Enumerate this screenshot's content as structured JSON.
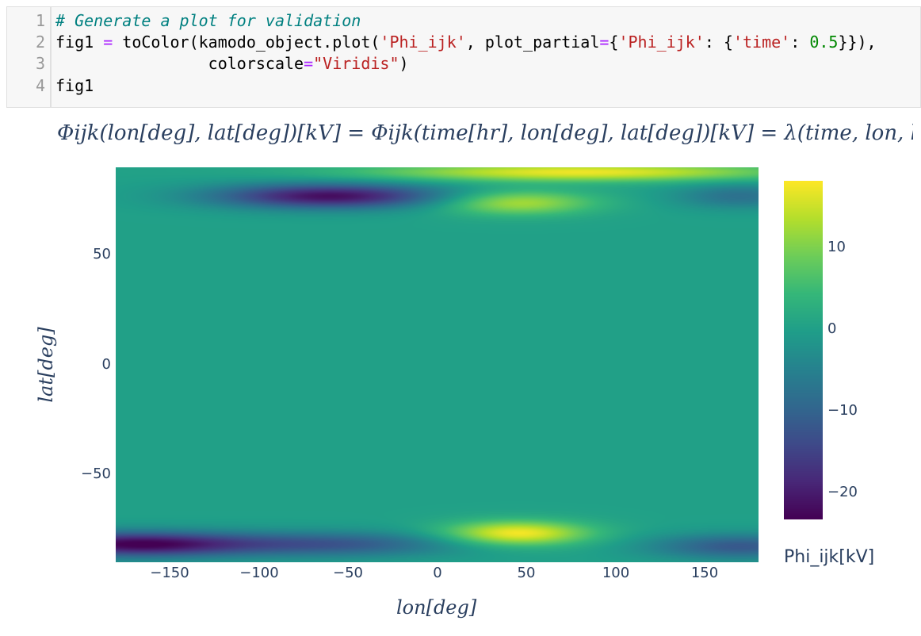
{
  "code_cell": {
    "line_numbers": [
      "1",
      "2",
      "3",
      "4"
    ],
    "lines": {
      "l1_comment": "# Generate a plot for validation",
      "l2_a": "fig1 ",
      "l2_eq": "=",
      "l2_b": " toColor(kamodo_object.plot(",
      "l2_s1": "'Phi_ijk'",
      "l2_c": ", plot_partial",
      "l2_eq2": "=",
      "l2_d": "{",
      "l2_s2": "'Phi_ijk'",
      "l2_e": ": {",
      "l2_s3": "'time'",
      "l2_f": ": ",
      "l2_num": "0.5",
      "l2_g": "}}),",
      "l3_a": "                colorscale",
      "l3_eq": "=",
      "l3_s": "\"Viridis\"",
      "l3_b": ")",
      "l4": "fig1"
    }
  },
  "chart_data": {
    "type": "heatmap",
    "title": "Φijk(lon[deg], lat[deg])[kV] = Φijk(time[hr], lon[deg], lat[deg])[kV] = λ(time, lon, lat), time",
    "xlabel": "lon[deg]",
    "ylabel": "lat[deg]",
    "xlim": [
      -180,
      180
    ],
    "ylim": [
      -90,
      90
    ],
    "x_ticks": [
      -150,
      -100,
      -50,
      0,
      50,
      100,
      150
    ],
    "y_ticks": [
      50,
      0,
      -50
    ],
    "x_tick_labels": [
      "−150",
      "−100",
      "−50",
      "0",
      "50",
      "100",
      "150"
    ],
    "y_tick_labels": [
      "50",
      "0",
      "−50"
    ],
    "colorscale": "Viridis",
    "colorbar": {
      "title": "Phi_ijk[kV]",
      "range": [
        -23.5,
        18
      ],
      "ticks": [
        10,
        0,
        -10,
        -20
      ],
      "tick_labels": [
        "10",
        "0",
        "−10",
        "−20"
      ]
    },
    "features": [
      {
        "lon": -170,
        "lat": -82,
        "value": -23,
        "slon": 45,
        "slat": 4
      },
      {
        "lon": -60,
        "lat": -82,
        "value": -12,
        "slon": 50,
        "slat": 4
      },
      {
        "lon": 170,
        "lat": -83,
        "value": -12,
        "slon": 35,
        "slat": 4
      },
      {
        "lon": 45,
        "lat": -77,
        "value": 18,
        "slon": 28,
        "slat": 4
      },
      {
        "lon": -60,
        "lat": 77,
        "value": -22,
        "slon": 45,
        "slat": 4
      },
      {
        "lon": 45,
        "lat": 74,
        "value": 13,
        "slon": 30,
        "slat": 4
      },
      {
        "lon": 80,
        "lat": 88,
        "value": 17,
        "slon": 80,
        "slat": 3
      },
      {
        "lon": 170,
        "lat": 77,
        "value": -8,
        "slon": 25,
        "slat": 4
      }
    ]
  }
}
